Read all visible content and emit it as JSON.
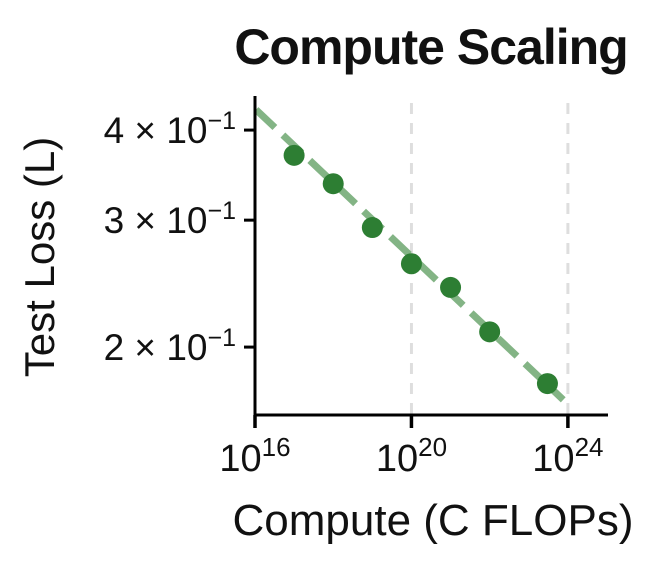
{
  "chart_data": {
    "type": "scatter",
    "title": "Compute Scaling",
    "xlabel": "Compute (C FLOPs)",
    "ylabel": "Test Loss (L)",
    "xscale": "log",
    "yscale": "log",
    "xlim": [
      1e+16,
      1e+25
    ],
    "ylim": [
      0.161,
      0.446
    ],
    "grid": "vertical dashed gridlines at 1e20 and 1e24 only",
    "legend": "none",
    "points": {
      "x": [
        1e+17,
        1e+18,
        1e+19,
        1e+20,
        1e+21,
        1e+22,
        3e+23
      ],
      "y": [
        0.369,
        0.337,
        0.293,
        0.261,
        0.242,
        0.21,
        0.178
      ]
    },
    "trendline": {
      "description": "dashed power-law fit L ~ C^-0.05",
      "x": [
        1.06e+16,
        7.6e+23
      ],
      "y": [
        0.427,
        0.169
      ]
    },
    "x_gridlines": [
      1e+20,
      1e+24
    ],
    "x_ticks": [
      {
        "value": 1e+16,
        "base": "10",
        "exp": "16"
      },
      {
        "value": 1e+20,
        "base": "10",
        "exp": "20"
      },
      {
        "value": 1e+24,
        "base": "10",
        "exp": "24"
      }
    ],
    "y_ticks": [
      {
        "value": 0.4,
        "mantissa": "4 × 10",
        "exp": "−1"
      },
      {
        "value": 0.3,
        "mantissa": "3 × 10",
        "exp": "−1"
      },
      {
        "value": 0.2,
        "mantissa": "2 × 10",
        "exp": "−1"
      }
    ],
    "colors": {
      "marker": "#2d7e33",
      "trend": "#83b485",
      "gridline": "#dedede",
      "axis": "#000000",
      "text": "#111111"
    }
  }
}
